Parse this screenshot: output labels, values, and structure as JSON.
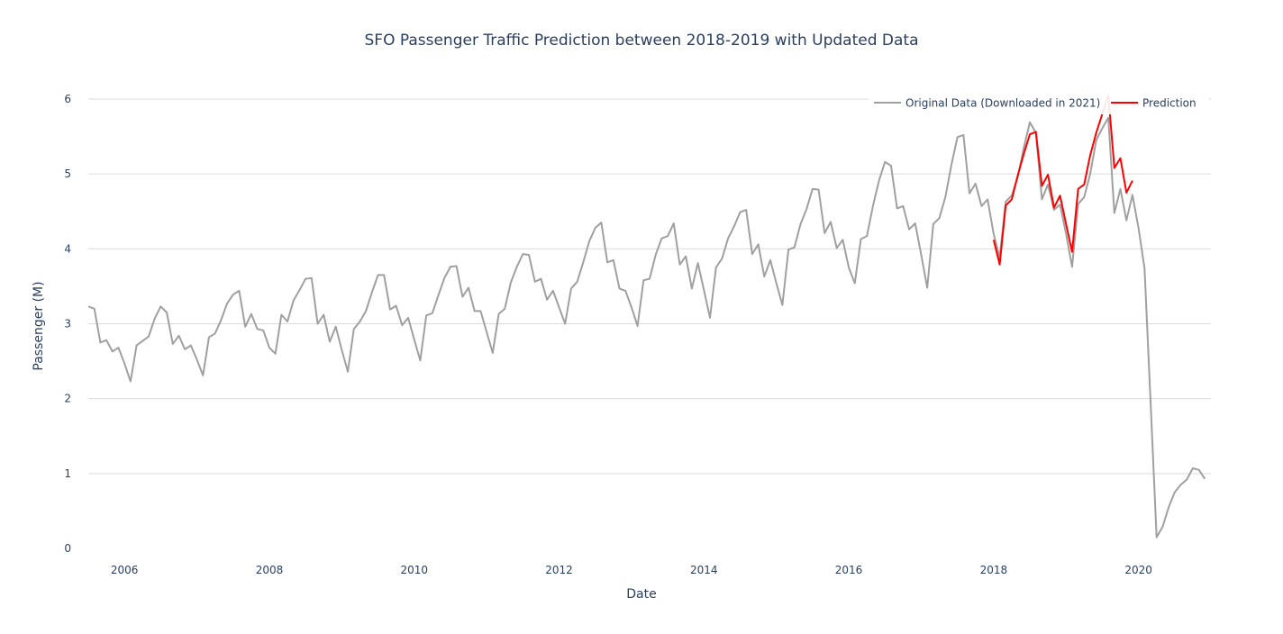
{
  "chart_data": {
    "type": "line",
    "title": "SFO Passenger Traffic Prediction between 2018-2019 with Updated Data",
    "xlabel": "Date",
    "ylabel": "Passenger (M)",
    "xlim": [
      "2005-07-01",
      "2021-01-01"
    ],
    "ylim": [
      0,
      6.3
    ],
    "x_ticks": [
      "2006",
      "2008",
      "2010",
      "2012",
      "2014",
      "2016",
      "2018",
      "2020"
    ],
    "y_ticks": [
      "0",
      "1",
      "2",
      "3",
      "4",
      "5",
      "6"
    ],
    "grid": true,
    "legend_position": "top-right",
    "series": [
      {
        "name": "Original Data (Downloaded in 2021)",
        "color": "#a0a0a0",
        "start": "2005-07",
        "step": "month",
        "values": [
          3.23,
          3.2,
          2.75,
          2.78,
          2.63,
          2.68,
          2.47,
          2.23,
          2.71,
          2.77,
          2.83,
          3.07,
          3.23,
          3.15,
          2.73,
          2.84,
          2.66,
          2.71,
          2.52,
          2.31,
          2.82,
          2.87,
          3.05,
          3.27,
          3.39,
          3.44,
          2.96,
          3.13,
          2.93,
          2.91,
          2.68,
          2.6,
          3.12,
          3.03,
          3.31,
          3.45,
          3.6,
          3.61,
          3.0,
          3.12,
          2.76,
          2.96,
          2.65,
          2.36,
          2.93,
          3.03,
          3.17,
          3.42,
          3.65,
          3.65,
          3.19,
          3.24,
          2.98,
          3.08,
          2.79,
          2.51,
          3.11,
          3.14,
          3.38,
          3.61,
          3.76,
          3.77,
          3.36,
          3.48,
          3.17,
          3.17,
          2.89,
          2.61,
          3.13,
          3.2,
          3.55,
          3.76,
          3.93,
          3.92,
          3.56,
          3.6,
          3.32,
          3.44,
          3.22,
          3.0,
          3.47,
          3.56,
          3.82,
          4.1,
          4.28,
          4.35,
          3.82,
          3.85,
          3.47,
          3.44,
          3.22,
          2.97,
          3.58,
          3.6,
          3.92,
          4.14,
          4.17,
          4.34,
          3.79,
          3.9,
          3.47,
          3.81,
          3.45,
          3.08,
          3.75,
          3.87,
          4.14,
          4.3,
          4.49,
          4.52,
          3.93,
          4.06,
          3.63,
          3.85,
          3.54,
          3.25,
          3.99,
          4.02,
          4.33,
          4.53,
          4.8,
          4.79,
          4.21,
          4.36,
          4.01,
          4.12,
          3.75,
          3.54,
          4.13,
          4.17,
          4.57,
          4.91,
          5.16,
          5.11,
          4.54,
          4.57,
          4.26,
          4.34,
          3.92,
          3.48,
          4.33,
          4.41,
          4.69,
          5.12,
          5.49,
          5.52,
          4.74,
          4.87,
          4.57,
          4.66,
          4.2,
          3.88,
          4.63,
          4.71,
          4.96,
          5.35,
          5.69,
          5.55,
          4.66,
          4.86,
          4.52,
          4.59,
          4.2,
          3.76,
          4.6,
          4.69,
          5.0,
          5.45,
          5.61,
          5.75,
          4.48,
          4.8,
          4.38,
          4.72,
          4.28,
          3.74,
          1.96,
          0.15,
          0.29,
          0.55,
          0.75,
          0.85,
          0.92,
          1.07,
          1.05,
          0.93
        ]
      },
      {
        "name": "Prediction",
        "color": "#ff0000",
        "start": "2018-01",
        "step": "month",
        "values": [
          4.12,
          3.79,
          4.58,
          4.66,
          4.98,
          5.27,
          5.53,
          5.56,
          4.84,
          4.99,
          4.55,
          4.71,
          4.33,
          3.96,
          4.8,
          4.86,
          5.25,
          5.55,
          5.8,
          6.05,
          5.08,
          5.21,
          4.75,
          4.91
        ]
      }
    ]
  }
}
